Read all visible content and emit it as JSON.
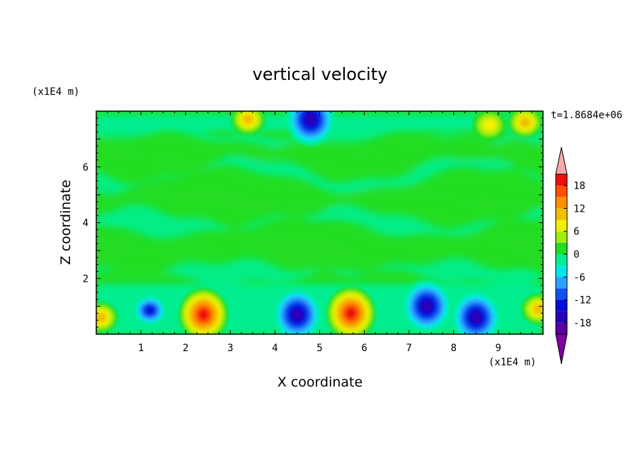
{
  "chart_data": {
    "type": "heatmap",
    "title": "vertical velocity",
    "xlabel": "X coordinate",
    "ylabel": "Z coordinate",
    "x_unit": "(x1E4 m)",
    "y_unit": "(x1E4 m)",
    "time_label": "t=1.8684e+06",
    "xlim": [
      0,
      10
    ],
    "ylim": [
      0,
      8
    ],
    "x_ticks": [
      1,
      2,
      3,
      4,
      5,
      6,
      7,
      8,
      9
    ],
    "y_ticks": [
      2,
      4,
      6
    ],
    "colorbar": {
      "levels": [
        -21,
        -18,
        -15,
        -12,
        -9,
        -6,
        -3,
        0,
        3,
        6,
        9,
        12,
        15,
        18,
        21
      ],
      "tick_labels": [
        "18",
        "12",
        "6",
        "0",
        "-6",
        "-12",
        "-18"
      ],
      "tick_values": [
        18,
        12,
        6,
        0,
        -6,
        -12,
        -18
      ],
      "colors": [
        "#5a00a0",
        "#2a00b8",
        "#0010d8",
        "#1050f0",
        "#2aa0ff",
        "#00e8e8",
        "#00ee90",
        "#22dd22",
        "#a0ee10",
        "#f0f000",
        "#f0c000",
        "#ff9000",
        "#ff5000",
        "#ee1010"
      ],
      "over_color": "#f8a8a8",
      "under_color": "#8000a0",
      "extend": "both"
    },
    "features": [
      {
        "x": 0.1,
        "z": 0.6,
        "w": 12
      },
      {
        "x": 1.2,
        "z": 0.85,
        "w": -13
      },
      {
        "x": 2.4,
        "z": 0.7,
        "w": 20
      },
      {
        "x": 4.5,
        "z": 0.7,
        "w": -18
      },
      {
        "x": 5.7,
        "z": 0.75,
        "w": 20
      },
      {
        "x": 7.4,
        "z": 1.0,
        "w": -17
      },
      {
        "x": 8.5,
        "z": 0.6,
        "w": -16
      },
      {
        "x": 9.9,
        "z": 0.9,
        "w": 12
      },
      {
        "x": 4.8,
        "z": 7.7,
        "w": -16
      },
      {
        "x": 3.4,
        "z": 7.7,
        "w": 11
      },
      {
        "x": 8.8,
        "z": 7.5,
        "w": 9
      },
      {
        "x": 9.6,
        "z": 7.6,
        "w": 10
      }
    ]
  }
}
